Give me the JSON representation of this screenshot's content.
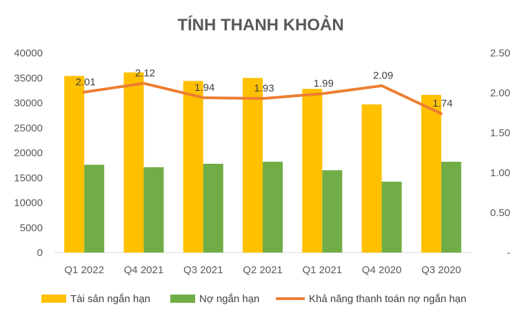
{
  "chart_data": {
    "type": "bar",
    "title": "TÍNH THANH KHOẢN",
    "categories": [
      "Q1 2022",
      "Q4 2021",
      "Q3 2021",
      "Q2 2021",
      "Q1 2021",
      "Q4 2020",
      "Q3 2020"
    ],
    "series": [
      {
        "name": "Tài sản ngắn hạn",
        "type": "bar",
        "axis": "left",
        "color": "#FFC000",
        "values": [
          35400,
          36100,
          34400,
          35000,
          32800,
          29700,
          31600
        ]
      },
      {
        "name": "Nợ ngắn hạn",
        "type": "bar",
        "axis": "left",
        "color": "#70AD47",
        "values": [
          17600,
          17100,
          17800,
          18200,
          16500,
          14200,
          18200
        ]
      },
      {
        "name": "Khả năng thanh toán nợ ngắn hạn",
        "type": "line",
        "axis": "right",
        "color": "#ED7D31",
        "values": [
          2.01,
          2.12,
          1.94,
          1.93,
          1.99,
          2.09,
          1.74
        ],
        "labels": [
          "2.01",
          "2.12",
          "1.94",
          "1.93",
          "1.99",
          "2.09",
          "1.74"
        ]
      }
    ],
    "y_left": {
      "lim": [
        0,
        40000
      ],
      "ticks": [
        "0",
        "5000",
        "10000",
        "15000",
        "20000",
        "25000",
        "30000",
        "35000",
        "40000"
      ]
    },
    "y_right": {
      "lim": [
        0,
        2.5
      ],
      "ticks": [
        "-",
        "0.50",
        "1.00",
        "1.50",
        "2.00",
        "2.50"
      ]
    },
    "grid": false,
    "legend": "bottom"
  }
}
